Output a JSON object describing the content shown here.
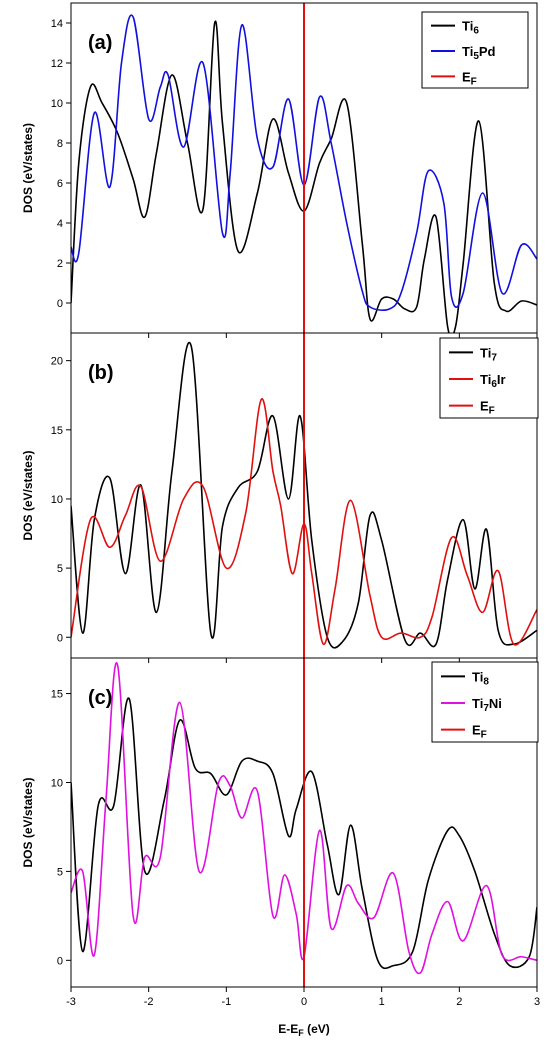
{
  "chart_data": [
    {
      "type": "line",
      "panel_label": "(a)",
      "ylabel": "DOS (eV/states)",
      "xlim": [
        -3,
        3
      ],
      "ylim": [
        -1.5,
        15
      ],
      "yticks": [
        0,
        2,
        4,
        6,
        8,
        10,
        12,
        14
      ],
      "legend_position": "top-right",
      "fermi_color": "#e01010",
      "legend": [
        {
          "parts": [
            {
              "t": "Ti",
              "sub": false
            },
            {
              "t": "6",
              "sub": true
            }
          ],
          "color": "#000000"
        },
        {
          "parts": [
            {
              "t": "Ti",
              "sub": false
            },
            {
              "t": "5",
              "sub": true
            },
            {
              "t": "Pd",
              "sub": false
            }
          ],
          "color": "#1010e0"
        },
        {
          "parts": [
            {
              "t": "E",
              "sub": false
            },
            {
              "t": "F",
              "sub": true
            }
          ],
          "color": "#e01010"
        }
      ],
      "series": [
        {
          "color": "#000000",
          "x": [
            -3,
            -2.9,
            -2.75,
            -2.6,
            -2.4,
            -2.2,
            -2.05,
            -1.9,
            -1.7,
            -1.5,
            -1.3,
            -1.15,
            -1.05,
            -0.85,
            -0.6,
            -0.4,
            -0.2,
            0,
            0.2,
            0.35,
            0.55,
            0.75,
            0.85,
            1.0,
            1.15,
            1.3,
            1.45,
            1.55,
            1.7,
            1.85,
            1.95,
            2.05,
            2.25,
            2.45,
            2.6,
            2.8,
            3
          ],
          "y": [
            0,
            7,
            10.8,
            10,
            8.5,
            6.2,
            4.3,
            7.5,
            11.4,
            8,
            4.7,
            14,
            9,
            2.6,
            5.5,
            9.2,
            6.5,
            4.6,
            7,
            8.2,
            10,
            3,
            -0.8,
            0.2,
            0.2,
            -0.3,
            -0.2,
            2.2,
            4.3,
            -1.2,
            -1.2,
            2,
            9.1,
            1,
            -0.4,
            0.1,
            -0.1
          ]
        },
        {
          "color": "#1010e0",
          "x": [
            -3,
            -2.9,
            -2.7,
            -2.5,
            -2.35,
            -2.2,
            -2.0,
            -1.85,
            -1.75,
            -1.55,
            -1.3,
            -1.05,
            -0.95,
            -0.8,
            -0.6,
            -0.4,
            -0.2,
            0,
            0.2,
            0.35,
            0.55,
            0.75,
            0.85,
            1.1,
            1.25,
            1.45,
            1.6,
            1.8,
            1.9,
            2.05,
            2.3,
            2.55,
            2.8,
            3
          ],
          "y": [
            2.8,
            2.5,
            9.5,
            5.8,
            12,
            14.3,
            9.2,
            10.8,
            11.4,
            7.8,
            12,
            3.5,
            6.5,
            13.9,
            8.2,
            6.8,
            10.2,
            5.9,
            10.3,
            8,
            4,
            0.6,
            -0.2,
            -0.3,
            0.5,
            3.5,
            6.6,
            5,
            0.3,
            0.5,
            5.5,
            0.5,
            2.9,
            2.2
          ]
        }
      ]
    },
    {
      "type": "line",
      "panel_label": "(b)",
      "ylabel": "DOS (eV/states)",
      "xlim": [
        -3,
        3
      ],
      "ylim": [
        -1.5,
        22
      ],
      "yticks": [
        0,
        5,
        10,
        15,
        20
      ],
      "legend_position": "top-right",
      "fermi_color": "#e01010",
      "legend": [
        {
          "parts": [
            {
              "t": "Ti",
              "sub": false
            },
            {
              "t": "7",
              "sub": true
            }
          ],
          "color": "#000000"
        },
        {
          "parts": [
            {
              "t": "Ti",
              "sub": false
            },
            {
              "t": "6",
              "sub": true
            },
            {
              "t": "Ir",
              "sub": false
            }
          ],
          "color": "#e01010"
        },
        {
          "parts": [
            {
              "t": "E",
              "sub": false
            },
            {
              "t": "F",
              "sub": true
            }
          ],
          "color": "#e01010"
        }
      ],
      "series": [
        {
          "color": "#000000",
          "x": [
            -3,
            -2.85,
            -2.7,
            -2.5,
            -2.3,
            -2.1,
            -1.9,
            -1.7,
            -1.45,
            -1.2,
            -1.05,
            -0.85,
            -0.6,
            -0.4,
            -0.2,
            -0.05,
            0.1,
            0.3,
            0.5,
            0.7,
            0.85,
            1.0,
            1.3,
            1.5,
            1.7,
            1.85,
            2.05,
            2.2,
            2.35,
            2.5,
            2.7,
            3
          ],
          "y": [
            9.5,
            0.3,
            8.5,
            11.5,
            4.6,
            11,
            1.8,
            12,
            21,
            0.3,
            8,
            10.8,
            12,
            16,
            10,
            16,
            7,
            0,
            -0.3,
            2.5,
            8.8,
            7,
            -0.2,
            0.3,
            -0.5,
            4.2,
            8.5,
            3.5,
            7.8,
            0.5,
            -0.5,
            0.5
          ]
        },
        {
          "color": "#e01010",
          "x": [
            -3,
            -2.75,
            -2.5,
            -2.3,
            -2.1,
            -1.85,
            -1.55,
            -1.3,
            -1.0,
            -0.75,
            -0.55,
            -0.4,
            -0.3,
            -0.15,
            0,
            0.1,
            0.25,
            0.4,
            0.6,
            0.85,
            1.0,
            1.25,
            1.5,
            1.65,
            1.9,
            2.1,
            2.3,
            2.5,
            2.7,
            3
          ],
          "y": [
            0,
            8.5,
            6.5,
            8.8,
            10.9,
            5.5,
            10,
            10.9,
            5,
            9,
            17.2,
            12,
            9.5,
            4.6,
            8.2,
            4.6,
            -0.5,
            3.5,
            9.9,
            3,
            0,
            0.3,
            0,
            1.5,
            7.2,
            4.5,
            1.8,
            4.8,
            -0.5,
            2
          ]
        }
      ]
    },
    {
      "type": "line",
      "panel_label": "(c)",
      "xlabel": "E-EF (eV)",
      "ylabel": "DOS (eV/states)",
      "xlim": [
        -3,
        3
      ],
      "ylim": [
        -1.5,
        17
      ],
      "yticks": [
        0,
        5,
        10,
        15
      ],
      "xticks": [
        -3,
        -2,
        -1,
        0,
        1,
        2,
        3
      ],
      "legend_position": "top-right",
      "fermi_color": "#e01010",
      "legend": [
        {
          "parts": [
            {
              "t": "Ti",
              "sub": false
            },
            {
              "t": "8",
              "sub": true
            }
          ],
          "color": "#000000"
        },
        {
          "parts": [
            {
              "t": "Ti",
              "sub": false
            },
            {
              "t": "7",
              "sub": true
            },
            {
              "t": "Ni",
              "sub": false
            }
          ],
          "color": "#e010e0"
        },
        {
          "parts": [
            {
              "t": "E",
              "sub": false
            },
            {
              "t": "F",
              "sub": true
            }
          ],
          "color": "#e01010"
        }
      ],
      "series": [
        {
          "color": "#000000",
          "x": [
            -3,
            -2.85,
            -2.65,
            -2.45,
            -2.25,
            -2.05,
            -1.8,
            -1.6,
            -1.4,
            -1.2,
            -1.0,
            -0.8,
            -0.6,
            -0.4,
            -0.2,
            -0.1,
            0.1,
            0.3,
            0.45,
            0.6,
            0.75,
            0.95,
            1.15,
            1.4,
            1.6,
            1.85,
            2.0,
            2.2,
            2.45,
            2.65,
            2.9,
            3
          ],
          "y": [
            10,
            0.5,
            8.7,
            8.7,
            14.7,
            5,
            9,
            13.5,
            10.8,
            10.5,
            9.3,
            11.2,
            11.2,
            10.5,
            7,
            8.5,
            10.6,
            6.5,
            3.7,
            7.6,
            4,
            0,
            -0.3,
            0.5,
            4.5,
            7.3,
            7,
            5,
            1.5,
            -0.3,
            0.2,
            3
          ]
        },
        {
          "color": "#e010e0",
          "x": [
            -3,
            -2.85,
            -2.7,
            -2.55,
            -2.4,
            -2.2,
            -2.05,
            -1.85,
            -1.6,
            -1.35,
            -1.1,
            -0.95,
            -0.8,
            -0.6,
            -0.4,
            -0.25,
            -0.1,
            0,
            0.2,
            0.35,
            0.55,
            0.7,
            0.9,
            1.15,
            1.35,
            1.5,
            1.65,
            1.85,
            2.05,
            2.35,
            2.55,
            2.8,
            3
          ],
          "y": [
            3.8,
            5,
            0.3,
            9,
            16.6,
            2.5,
            5.8,
            5.8,
            14.5,
            5,
            10,
            9.8,
            8,
            9.5,
            2.5,
            4.8,
            2.6,
            0.2,
            7.3,
            1.8,
            4.2,
            3.2,
            2.4,
            4.9,
            0.5,
            -0.7,
            1.5,
            3.3,
            1.1,
            4.2,
            0.3,
            0.2,
            0
          ]
        }
      ]
    }
  ]
}
